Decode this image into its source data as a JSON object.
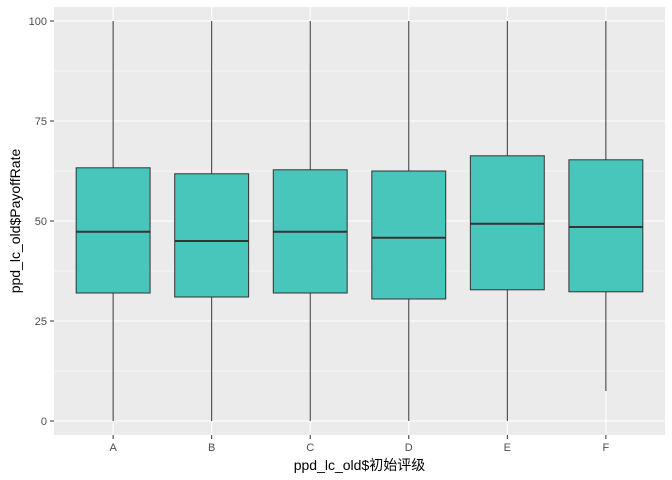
{
  "chart_data": {
    "type": "box",
    "xlabel": "ppd_lc_old$初始评级",
    "ylabel": "ppd_lc_old$PayoffRate",
    "ylim": [
      -3.5,
      103.5
    ],
    "yticks": [
      0,
      25,
      50,
      75,
      100
    ],
    "grid": true,
    "fill_color": "#48C6BC",
    "panel_color": "#EBEBEB",
    "categories": [
      "A",
      "B",
      "C",
      "D",
      "E",
      "F"
    ],
    "boxes": [
      {
        "category": "A",
        "min": 0,
        "q1": 32.0,
        "median": 47.3,
        "q3": 63.3,
        "max": 100
      },
      {
        "category": "B",
        "min": 0,
        "q1": 31.0,
        "median": 45.0,
        "q3": 61.8,
        "max": 100
      },
      {
        "category": "C",
        "min": 0,
        "q1": 32.0,
        "median": 47.3,
        "q3": 62.8,
        "max": 100
      },
      {
        "category": "D",
        "min": 0,
        "q1": 30.5,
        "median": 45.8,
        "q3": 62.5,
        "max": 100
      },
      {
        "category": "E",
        "min": 0,
        "q1": 32.8,
        "median": 49.3,
        "q3": 66.3,
        "max": 100
      },
      {
        "category": "F",
        "min": 7.5,
        "q1": 32.3,
        "median": 48.5,
        "q3": 65.3,
        "max": 100
      }
    ]
  }
}
